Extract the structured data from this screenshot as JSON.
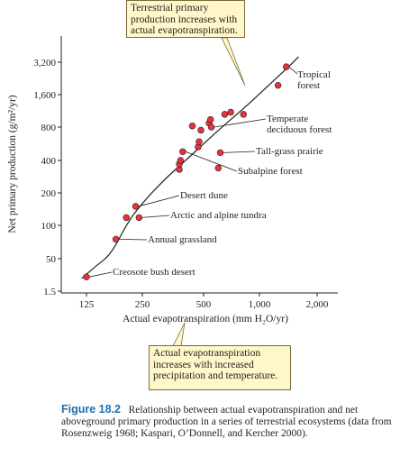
{
  "chart_data": {
    "type": "scatter",
    "xlabel": "Actual evapotranspiration (mm H₂O/yr)",
    "ylabel": "Net primary production (g/m²/yr)",
    "x_ticks": [
      125,
      250,
      500,
      1000,
      2000
    ],
    "x_tick_labels": [
      "125",
      "250",
      "500",
      "1,000",
      "2,000"
    ],
    "y_ticks": [
      1.5,
      50,
      100,
      200,
      400,
      800,
      1600,
      3200
    ],
    "y_tick_labels": [
      "1.5",
      "50",
      "100",
      "200",
      "400",
      "800",
      "1,600",
      "3,200"
    ],
    "x_scale": "log",
    "y_scale": "log",
    "grid": false,
    "point_color": "#e8323c",
    "series": [
      {
        "points": [
          {
            "x": 125,
            "y": 7
          },
          {
            "x": 180,
            "y": 75
          },
          {
            "x": 205,
            "y": 118
          },
          {
            "x": 230,
            "y": 150
          },
          {
            "x": 240,
            "y": 118
          },
          {
            "x": 380,
            "y": 330
          },
          {
            "x": 380,
            "y": 370
          },
          {
            "x": 385,
            "y": 400
          },
          {
            "x": 395,
            "y": 480
          },
          {
            "x": 440,
            "y": 820
          },
          {
            "x": 470,
            "y": 530
          },
          {
            "x": 475,
            "y": 590
          },
          {
            "x": 485,
            "y": 750
          },
          {
            "x": 535,
            "y": 870
          },
          {
            "x": 545,
            "y": 940
          },
          {
            "x": 550,
            "y": 800
          },
          {
            "x": 600,
            "y": 340
          },
          {
            "x": 615,
            "y": 470
          },
          {
            "x": 650,
            "y": 1050
          },
          {
            "x": 700,
            "y": 1100
          },
          {
            "x": 820,
            "y": 1050
          },
          {
            "x": 1250,
            "y": 1950
          },
          {
            "x": 1380,
            "y": 2900
          }
        ]
      }
    ],
    "trend_curve": [
      [
        118,
        6
      ],
      [
        140,
        22
      ],
      [
        170,
        55
      ],
      [
        210,
        110
      ],
      [
        260,
        175
      ],
      [
        330,
        280
      ],
      [
        420,
        420
      ],
      [
        530,
        620
      ],
      [
        680,
        900
      ],
      [
        880,
        1320
      ],
      [
        1150,
        2050
      ],
      [
        1450,
        3000
      ],
      [
        1600,
        3600
      ]
    ],
    "annotations": [
      {
        "label": "Tropical\nforest",
        "x": 1380,
        "y": 2900
      },
      {
        "label": "Temperate\ndeciduous forest",
        "x": 550,
        "y": 800
      },
      {
        "label": "Tall-grass prairie",
        "x": 615,
        "y": 470
      },
      {
        "label": "Subalpine forest",
        "x": 395,
        "y": 480
      },
      {
        "label": "Desert dune",
        "x": 230,
        "y": 150
      },
      {
        "label": "Arctic and alpine tundra",
        "x": 240,
        "y": 118
      },
      {
        "label": "Annual grassland",
        "x": 180,
        "y": 75
      },
      {
        "label": "Creosote bush desert",
        "x": 125,
        "y": 7
      }
    ]
  },
  "callouts": {
    "top": [
      "Terrestrial primary",
      "production increases with",
      "actual evapotranspiration."
    ],
    "bottom": [
      "Actual evapotranspiration",
      "increases with increased",
      "precipitation and temperature."
    ]
  },
  "caption": {
    "figure_label": "Figure 18.2",
    "text": "Relationship between actual evapotranspiration and net aboveground primary production in a series of terrestrial ecosystems (data from Rosenzweig 1968; Kaspari, O’Donnell, and Kercher 2000)."
  },
  "colors": {
    "point": "#e8323c",
    "callout_fill": "#fff7c9",
    "caption_label": "#1f6fae"
  }
}
